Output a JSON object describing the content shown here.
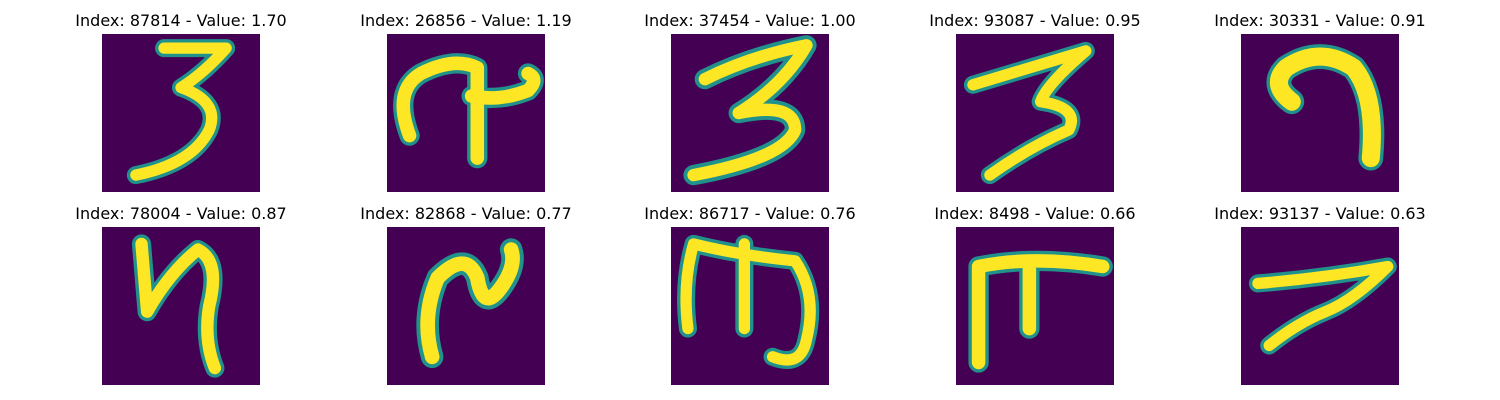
{
  "accent": {
    "background": "#440154",
    "stroke": "#fde725",
    "edge": "#21918c"
  },
  "panels": [
    {
      "title": "Index: 87814 - Value: 1.70",
      "glyph": "digit-3-icon"
    },
    {
      "title": "Index: 26856 - Value: 1.19",
      "glyph": "handwritten-glyph-icon"
    },
    {
      "title": "Index: 37454 - Value: 1.00",
      "glyph": "digit-3-icon"
    },
    {
      "title": "Index: 93087 - Value: 0.95",
      "glyph": "digit-3-icon"
    },
    {
      "title": "Index: 30331 - Value: 0.91",
      "glyph": "handwritten-glyph-icon"
    },
    {
      "title": "Index: 78004 - Value: 0.87",
      "glyph": "handwritten-glyph-icon"
    },
    {
      "title": "Index: 82868 - Value: 0.77",
      "glyph": "handwritten-glyph-icon"
    },
    {
      "title": "Index: 86717 - Value: 0.76",
      "glyph": "handwritten-glyph-icon"
    },
    {
      "title": "Index: 8498 - Value: 0.66",
      "glyph": "handwritten-glyph-icon"
    },
    {
      "title": "Index: 93137 - Value: 0.63",
      "glyph": "digit-7-icon"
    }
  ]
}
